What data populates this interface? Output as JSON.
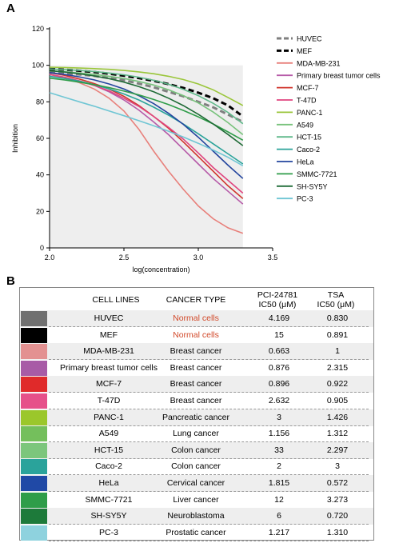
{
  "panel_a_label": "A",
  "panel_b_label": "B",
  "chart_data": {
    "type": "line",
    "xlabel": "log(concentration)",
    "ylabel": "Inhibition",
    "xlim": [
      2.0,
      3.5
    ],
    "ylim": [
      0,
      120
    ],
    "xticks": [
      "2.0",
      "2.5",
      "3.0",
      "3.5"
    ],
    "yticks": [
      "0",
      "20",
      "40",
      "60",
      "80",
      "100",
      "120"
    ],
    "x": [
      2.0,
      2.1,
      2.2,
      2.3,
      2.4,
      2.5,
      2.6,
      2.7,
      2.8,
      2.9,
      3.0,
      3.1,
      3.2,
      3.3
    ],
    "legend_position": "right",
    "series": [
      {
        "name": "HUVEC",
        "color": "#7f7f7f",
        "style": "dashed",
        "values": [
          96,
          95.5,
          95,
          94.2,
          93,
          91.8,
          90,
          88,
          85.5,
          83,
          80,
          77,
          73,
          69
        ]
      },
      {
        "name": "MEF",
        "color": "#000000",
        "style": "dashed",
        "values": [
          98,
          97.6,
          97,
          96.3,
          95.4,
          94.3,
          93,
          91.5,
          89.7,
          87.6,
          85,
          82,
          78,
          72
        ]
      },
      {
        "name": "MDA-MB-231",
        "color": "#e8807b",
        "style": "solid",
        "values": [
          95,
          93,
          90.5,
          87,
          82,
          75,
          65,
          53,
          42,
          32,
          23,
          16,
          11,
          8
        ]
      },
      {
        "name": "Primary breast tumor cells",
        "color": "#b65aa8",
        "style": "solid",
        "values": [
          95,
          93.5,
          91.5,
          89,
          85.5,
          81,
          75.5,
          69,
          62,
          54,
          46,
          38,
          31,
          24
        ]
      },
      {
        "name": "MCF-7",
        "color": "#d0342c",
        "style": "solid",
        "values": [
          96,
          94.5,
          92.5,
          90,
          87,
          83,
          78,
          72,
          65.5,
          58,
          50,
          42,
          34,
          27
        ]
      },
      {
        "name": "T-47D",
        "color": "#e0457f",
        "style": "solid",
        "values": [
          95,
          93.5,
          91.5,
          89,
          86,
          82,
          77.5,
          72,
          66,
          59.5,
          52,
          44,
          37,
          30
        ]
      },
      {
        "name": "PANC-1",
        "color": "#9ac63a",
        "style": "solid",
        "values": [
          99,
          98.8,
          98.5,
          98.2,
          97.8,
          97.2,
          96.4,
          95.4,
          94,
          92.2,
          89.8,
          86.6,
          82.4,
          78
        ]
      },
      {
        "name": "A549",
        "color": "#78c27c",
        "style": "solid",
        "values": [
          97,
          96.5,
          95.8,
          95,
          94,
          92.8,
          91.2,
          89.2,
          86.6,
          83.4,
          79.4,
          74.4,
          68.6,
          62
        ]
      },
      {
        "name": "HCT-15",
        "color": "#5fb88a",
        "style": "solid",
        "values": [
          98,
          97.6,
          97.2,
          96.6,
          95.8,
          94.8,
          93.5,
          91.8,
          89.6,
          86.8,
          83.4,
          79.2,
          74.2,
          68
        ]
      },
      {
        "name": "Caco-2",
        "color": "#2ba39a",
        "style": "solid",
        "values": [
          94,
          92.8,
          91.3,
          89.4,
          87.1,
          84.3,
          81,
          77.1,
          72.7,
          67.8,
          62.5,
          57,
          51.5,
          46
        ]
      },
      {
        "name": "HeLa",
        "color": "#23459e",
        "style": "solid",
        "values": [
          96,
          95,
          93.7,
          92,
          89.8,
          87,
          83.4,
          79,
          73.7,
          67.6,
          60.6,
          53,
          45.3,
          38
        ]
      },
      {
        "name": "SMMC-7721",
        "color": "#2e9c48",
        "style": "solid",
        "values": [
          93,
          92,
          90.8,
          89.4,
          87.8,
          85.9,
          83.8,
          81.3,
          78.5,
          75.3,
          71.8,
          67.9,
          63.5,
          59
        ]
      },
      {
        "name": "SH-SY5Y",
        "color": "#1f6b36",
        "style": "solid",
        "values": [
          97,
          96.3,
          95.4,
          94.2,
          92.7,
          90.8,
          88.4,
          85.5,
          82,
          77.9,
          73.2,
          67.9,
          62.1,
          56
        ]
      },
      {
        "name": "PC-3",
        "color": "#6fc6d4",
        "style": "solid",
        "values": [
          85,
          82.5,
          80,
          77.6,
          75,
          72.4,
          69.7,
          66.9,
          63.9,
          60.7,
          57.3,
          53.6,
          49.6,
          45
        ]
      }
    ]
  },
  "table": {
    "headers": {
      "cell_lines": "CELL LINES",
      "cancer_type": "CANCER TYPE",
      "pci_line1": "PCI-24781",
      "pci_line2": "IC50 (μM)",
      "tsa_line1": "TSA",
      "tsa_line2": "IC50 (μM)"
    },
    "rows": [
      {
        "cell": "HUVEC",
        "type": "Normal cells",
        "pci": "4.169",
        "tsa": "0.830",
        "color": "#707070"
      },
      {
        "cell": "MEF",
        "type": "Normal cells",
        "pci": "15",
        "tsa": "0.891",
        "color": "#000000"
      },
      {
        "cell": "MDA-MB-231",
        "type": "Breast cancer",
        "pci": "0.663",
        "tsa": "1",
        "color": "#e39191"
      },
      {
        "cell": "Primary breast tumor cells",
        "type": "Breast cancer",
        "pci": "0.876",
        "tsa": "2.315",
        "color": "#a85ba6"
      },
      {
        "cell": "MCF-7",
        "type": "Breast cancer",
        "pci": "0.896",
        "tsa": "0.922",
        "color": "#e02a2a"
      },
      {
        "cell": "T-47D",
        "type": "Breast cancer",
        "pci": "2.632",
        "tsa": "0.905",
        "color": "#e6508a"
      },
      {
        "cell": "PANC-1",
        "type": "Pancreatic cancer",
        "pci": "3",
        "tsa": "1.426",
        "color": "#9bc72b"
      },
      {
        "cell": "A549",
        "type": "Lung cancer",
        "pci": "1.156",
        "tsa": "1.312",
        "color": "#74bf5c"
      },
      {
        "cell": "HCT-15",
        "type": "Colon cancer",
        "pci": "33",
        "tsa": "2.297",
        "color": "#7cc67c"
      },
      {
        "cell": "Caco-2",
        "type": "Colon cancer",
        "pci": "2",
        "tsa": "3",
        "color": "#2aa39b"
      },
      {
        "cell": "HeLa",
        "type": "Cervical cancer",
        "pci": "1.815",
        "tsa": "0.572",
        "color": "#2049a6"
      },
      {
        "cell": "SMMC-7721",
        "type": "Liver cancer",
        "pci": "12",
        "tsa": "3.273",
        "color": "#2f9d49"
      },
      {
        "cell": "SH-SY5Y",
        "type": "Neuroblastoma",
        "pci": "6",
        "tsa": "0.720",
        "color": "#1d7a3a"
      },
      {
        "cell": "PC-3",
        "type": "Prostatic cancer",
        "pci": "1.217",
        "tsa": "1.310",
        "color": "#8ed2de"
      }
    ]
  }
}
